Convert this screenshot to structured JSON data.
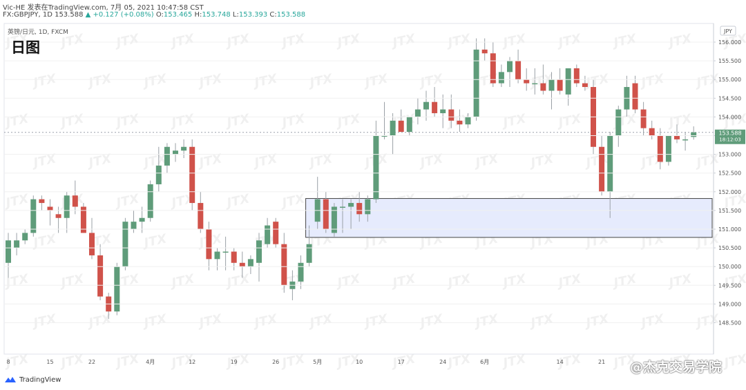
{
  "header": {
    "line1": "Vic-HE 发表在TradingView.com, 7月 05, 2021 10:47:58 CST",
    "line2_prefix": "FX:GBPJPY, 1D 153.588",
    "change": "+0.127 (+0.08%)",
    "o_label": "O:",
    "o": "153.465",
    "h_label": "H:",
    "h": "153.748",
    "l_label": "L:",
    "l": "153.393",
    "c_label": "C:",
    "c": "153.588"
  },
  "footer": {
    "brand": "TradingView",
    "credit": "@杰克交易学院"
  },
  "watermark": "JTX",
  "chart_data": {
    "type": "candlestick",
    "title": "日图",
    "subtitle": "英镑/日元, 1D, FXCM",
    "currency": "JPY",
    "ylim": [
      148.2,
      156.3
    ],
    "y_ticks": [
      "148.500",
      "149.000",
      "149.500",
      "150.000",
      "150.500",
      "151.000",
      "151.500",
      "152.000",
      "152.500",
      "153.000",
      "153.500",
      "154.000",
      "154.500",
      "155.000",
      "155.500",
      "156.000"
    ],
    "x_ticks": [
      {
        "label": "8",
        "index": 0
      },
      {
        "label": "15",
        "index": 5
      },
      {
        "label": "22",
        "index": 10
      },
      {
        "label": "4月",
        "index": 17
      },
      {
        "label": "12",
        "index": 22
      },
      {
        "label": "19",
        "index": 27
      },
      {
        "label": "26",
        "index": 32
      },
      {
        "label": "5月",
        "index": 37
      },
      {
        "label": "10",
        "index": 42
      },
      {
        "label": "17",
        "index": 47
      },
      {
        "label": "24",
        "index": 52
      },
      {
        "label": "6月",
        "index": 57
      },
      {
        "label": "14",
        "index": 66
      },
      {
        "label": "21",
        "index": 71
      }
    ],
    "last_price": "153.588",
    "countdown": "18:12:03",
    "zone": {
      "high": 151.82,
      "low": 150.78,
      "start_index": 36
    },
    "candles": [
      {
        "o": 150.1,
        "h": 150.9,
        "l": 149.7,
        "c": 150.7
      },
      {
        "o": 150.5,
        "h": 150.9,
        "l": 150.3,
        "c": 150.7
      },
      {
        "o": 150.7,
        "h": 151.0,
        "l": 150.6,
        "c": 150.9
      },
      {
        "o": 150.9,
        "h": 151.9,
        "l": 150.8,
        "c": 151.8
      },
      {
        "o": 151.8,
        "h": 151.9,
        "l": 151.5,
        "c": 151.7
      },
      {
        "o": 151.6,
        "h": 151.8,
        "l": 151.1,
        "c": 151.5
      },
      {
        "o": 151.4,
        "h": 151.6,
        "l": 150.9,
        "c": 151.3
      },
      {
        "o": 151.3,
        "h": 152.0,
        "l": 150.9,
        "c": 151.9
      },
      {
        "o": 151.9,
        "h": 152.3,
        "l": 151.4,
        "c": 151.6
      },
      {
        "o": 151.6,
        "h": 151.7,
        "l": 150.9,
        "c": 150.9
      },
      {
        "o": 150.9,
        "h": 151.3,
        "l": 150.2,
        "c": 150.3
      },
      {
        "o": 150.3,
        "h": 150.6,
        "l": 149.1,
        "c": 149.2
      },
      {
        "o": 149.2,
        "h": 149.3,
        "l": 148.6,
        "c": 148.8
      },
      {
        "o": 148.8,
        "h": 150.1,
        "l": 148.7,
        "c": 150.0
      },
      {
        "o": 150.0,
        "h": 151.3,
        "l": 149.9,
        "c": 151.2
      },
      {
        "o": 151.0,
        "h": 151.5,
        "l": 150.9,
        "c": 151.2
      },
      {
        "o": 151.2,
        "h": 151.6,
        "l": 150.9,
        "c": 151.3
      },
      {
        "o": 151.3,
        "h": 152.3,
        "l": 151.2,
        "c": 152.2
      },
      {
        "o": 152.2,
        "h": 153.2,
        "l": 152.0,
        "c": 152.7
      },
      {
        "o": 152.7,
        "h": 153.3,
        "l": 152.5,
        "c": 153.2
      },
      {
        "o": 153.0,
        "h": 153.3,
        "l": 152.8,
        "c": 153.1
      },
      {
        "o": 153.1,
        "h": 153.4,
        "l": 152.9,
        "c": 153.2
      },
      {
        "o": 153.2,
        "h": 153.4,
        "l": 151.5,
        "c": 151.7
      },
      {
        "o": 151.7,
        "h": 152.0,
        "l": 150.9,
        "c": 151.0
      },
      {
        "o": 151.0,
        "h": 151.2,
        "l": 149.9,
        "c": 150.2
      },
      {
        "o": 150.2,
        "h": 150.5,
        "l": 149.9,
        "c": 150.4
      },
      {
        "o": 150.4,
        "h": 150.8,
        "l": 149.9,
        "c": 150.4
      },
      {
        "o": 150.4,
        "h": 150.5,
        "l": 149.9,
        "c": 150.1
      },
      {
        "o": 150.1,
        "h": 150.4,
        "l": 149.7,
        "c": 150.0
      },
      {
        "o": 150.0,
        "h": 150.3,
        "l": 149.8,
        "c": 150.2
      },
      {
        "o": 150.1,
        "h": 150.9,
        "l": 149.6,
        "c": 150.7
      },
      {
        "o": 150.6,
        "h": 151.3,
        "l": 150.5,
        "c": 151.1
      },
      {
        "o": 151.2,
        "h": 151.3,
        "l": 150.5,
        "c": 150.6
      },
      {
        "o": 150.6,
        "h": 150.9,
        "l": 149.3,
        "c": 149.5
      },
      {
        "o": 149.4,
        "h": 149.9,
        "l": 149.1,
        "c": 149.6
      },
      {
        "o": 149.6,
        "h": 150.3,
        "l": 149.4,
        "c": 150.1
      },
      {
        "o": 150.1,
        "h": 151.1,
        "l": 150.0,
        "c": 150.6
      },
      {
        "o": 151.2,
        "h": 152.4,
        "l": 151.0,
        "c": 151.8
      },
      {
        "o": 151.8,
        "h": 152.0,
        "l": 150.9,
        "c": 151.0
      },
      {
        "o": 150.9,
        "h": 151.7,
        "l": 150.8,
        "c": 151.6
      },
      {
        "o": 151.6,
        "h": 151.8,
        "l": 150.9,
        "c": 151.6
      },
      {
        "o": 151.6,
        "h": 151.8,
        "l": 151.0,
        "c": 151.7
      },
      {
        "o": 151.7,
        "h": 152.0,
        "l": 151.2,
        "c": 151.4
      },
      {
        "o": 151.4,
        "h": 151.9,
        "l": 151.2,
        "c": 151.8
      },
      {
        "o": 151.8,
        "h": 153.9,
        "l": 151.7,
        "c": 153.5
      },
      {
        "o": 153.5,
        "h": 154.4,
        "l": 153.4,
        "c": 153.5
      },
      {
        "o": 153.5,
        "h": 154.1,
        "l": 153.0,
        "c": 153.9
      },
      {
        "o": 153.9,
        "h": 154.2,
        "l": 153.6,
        "c": 153.6
      },
      {
        "o": 153.6,
        "h": 154.0,
        "l": 153.5,
        "c": 154.0
      },
      {
        "o": 154.0,
        "h": 154.5,
        "l": 153.8,
        "c": 154.2
      },
      {
        "o": 154.2,
        "h": 154.7,
        "l": 153.9,
        "c": 154.4
      },
      {
        "o": 154.4,
        "h": 154.8,
        "l": 154.0,
        "c": 154.1
      },
      {
        "o": 154.1,
        "h": 154.6,
        "l": 153.7,
        "c": 154.2
      },
      {
        "o": 154.2,
        "h": 154.6,
        "l": 153.7,
        "c": 153.9
      },
      {
        "o": 153.9,
        "h": 154.2,
        "l": 153.6,
        "c": 153.8
      },
      {
        "o": 153.8,
        "h": 154.1,
        "l": 153.7,
        "c": 154.0
      },
      {
        "o": 154.0,
        "h": 156.1,
        "l": 153.9,
        "c": 155.8
      },
      {
        "o": 155.8,
        "h": 156.1,
        "l": 155.5,
        "c": 155.7
      },
      {
        "o": 155.7,
        "h": 156.0,
        "l": 154.8,
        "c": 154.9
      },
      {
        "o": 154.9,
        "h": 155.4,
        "l": 154.8,
        "c": 155.2
      },
      {
        "o": 155.2,
        "h": 155.6,
        "l": 154.8,
        "c": 155.5
      },
      {
        "o": 155.5,
        "h": 155.8,
        "l": 154.9,
        "c": 155.0
      },
      {
        "o": 155.0,
        "h": 155.3,
        "l": 154.7,
        "c": 154.9
      },
      {
        "o": 154.9,
        "h": 155.3,
        "l": 154.6,
        "c": 154.9
      },
      {
        "o": 154.9,
        "h": 155.4,
        "l": 154.6,
        "c": 154.7
      },
      {
        "o": 154.7,
        "h": 155.2,
        "l": 154.2,
        "c": 155.0
      },
      {
        "o": 155.0,
        "h": 155.3,
        "l": 154.6,
        "c": 154.7
      },
      {
        "o": 154.6,
        "h": 155.3,
        "l": 154.3,
        "c": 155.3
      },
      {
        "o": 155.3,
        "h": 155.4,
        "l": 154.8,
        "c": 154.9
      },
      {
        "o": 154.9,
        "h": 155.1,
        "l": 154.7,
        "c": 154.8
      },
      {
        "o": 154.8,
        "h": 155.0,
        "l": 153.0,
        "c": 153.2
      },
      {
        "o": 153.2,
        "h": 153.5,
        "l": 151.9,
        "c": 152.0
      },
      {
        "o": 152.0,
        "h": 153.6,
        "l": 151.3,
        "c": 153.5
      },
      {
        "o": 153.5,
        "h": 154.3,
        "l": 153.2,
        "c": 154.2
      },
      {
        "o": 154.2,
        "h": 155.1,
        "l": 154.0,
        "c": 154.8
      },
      {
        "o": 154.9,
        "h": 155.1,
        "l": 154.1,
        "c": 154.2
      },
      {
        "o": 154.2,
        "h": 154.4,
        "l": 153.5,
        "c": 153.7
      },
      {
        "o": 153.7,
        "h": 153.9,
        "l": 153.4,
        "c": 153.5
      },
      {
        "o": 153.5,
        "h": 153.7,
        "l": 152.6,
        "c": 152.8
      },
      {
        "o": 152.8,
        "h": 153.5,
        "l": 152.7,
        "c": 153.5
      },
      {
        "o": 153.5,
        "h": 153.8,
        "l": 153.3,
        "c": 153.4
      },
      {
        "o": 153.4,
        "h": 153.6,
        "l": 153.1,
        "c": 153.4
      },
      {
        "o": 153.465,
        "h": 153.748,
        "l": 153.393,
        "c": 153.588
      }
    ]
  },
  "colors": {
    "up": "#5f9c7a",
    "down": "#d0524a",
    "zone_fill": "#e6ebfd",
    "zone_stroke": "#444444",
    "grid": "#f0f0f0"
  }
}
